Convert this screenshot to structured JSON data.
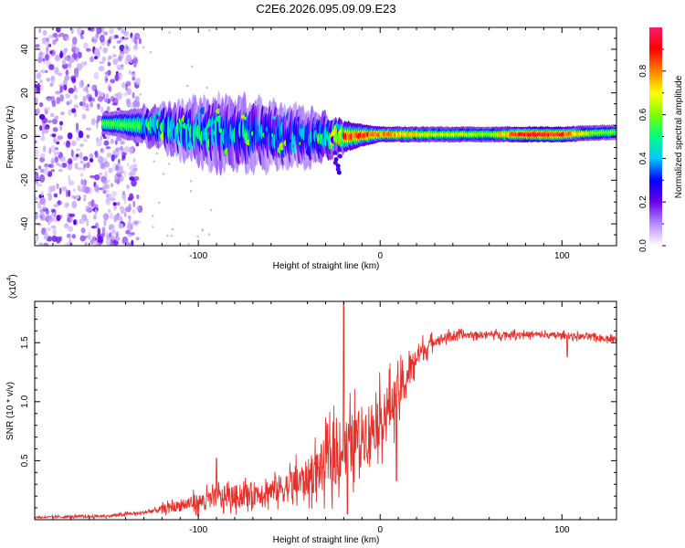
{
  "figure": {
    "title": "C2E6.2026.095.09.09.E23"
  },
  "colors": {
    "snr_line": "#e8302a",
    "spectral_stops": [
      "#ffffff",
      "#b48cff",
      "#6a00e8",
      "#0000ff",
      "#00c8ff",
      "#00ff80",
      "#80ff00",
      "#ffff00",
      "#ff8000",
      "#ff0000",
      "#ff1a70"
    ]
  },
  "chart_data": [
    {
      "type": "heatmap",
      "title": "C2E6.2026.095.09.09.E23",
      "xlabel": "Height of straight line (km)",
      "ylabel": "Frequency (Hz)",
      "xlim": [
        -190,
        130
      ],
      "ylim": [
        -50,
        50
      ],
      "x_ticks": [
        -100,
        0,
        100
      ],
      "x_tick_labels": [
        "-100",
        "0",
        "100"
      ],
      "y_ticks": [
        -40,
        -20,
        0,
        20,
        40
      ],
      "y_tick_labels": [
        "-40",
        "-20",
        "0",
        "20",
        "40"
      ],
      "colorbar": {
        "label": "Normalized spectral amplitude",
        "range": [
          0,
          1
        ],
        "ticks": [
          0.0,
          0.2,
          0.4,
          0.6,
          0.8
        ],
        "tick_labels": [
          "0.0",
          "0.2",
          "0.4",
          "0.6",
          "0.8"
        ]
      },
      "noise_region_x": [
        -190,
        -132
      ],
      "band_center_hz": [
        {
          "x": -150,
          "y": 6
        },
        {
          "x": -130,
          "y": 5
        },
        {
          "x": -110,
          "y": 3
        },
        {
          "x": -90,
          "y": 2
        },
        {
          "x": -70,
          "y": 1
        },
        {
          "x": -50,
          "y": 0
        },
        {
          "x": -30,
          "y": 0
        },
        {
          "x": -20,
          "y": 0
        },
        {
          "x": 0,
          "y": 1
        },
        {
          "x": 50,
          "y": 1
        },
        {
          "x": 100,
          "y": 1
        },
        {
          "x": 130,
          "y": 2
        }
      ],
      "band_halfwidth_hz": [
        {
          "x": -150,
          "y": 3
        },
        {
          "x": -120,
          "y": 6
        },
        {
          "x": -90,
          "y": 10
        },
        {
          "x": -60,
          "y": 9
        },
        {
          "x": -40,
          "y": 8
        },
        {
          "x": -25,
          "y": 5
        },
        {
          "x": -10,
          "y": 3
        },
        {
          "x": 0,
          "y": 2
        },
        {
          "x": 130,
          "y": 2
        }
      ],
      "band_peak_amplitude": [
        {
          "x": -150,
          "y": 0.55
        },
        {
          "x": -120,
          "y": 0.5
        },
        {
          "x": -100,
          "y": 0.45
        },
        {
          "x": -70,
          "y": 0.4
        },
        {
          "x": -40,
          "y": 0.35
        },
        {
          "x": -20,
          "y": 0.85
        },
        {
          "x": 0,
          "y": 0.8
        },
        {
          "x": 30,
          "y": 0.65
        },
        {
          "x": 60,
          "y": 0.6
        },
        {
          "x": 85,
          "y": 0.95
        },
        {
          "x": 100,
          "y": 0.9
        },
        {
          "x": 115,
          "y": 0.6
        },
        {
          "x": 130,
          "y": 0.55
        }
      ]
    },
    {
      "type": "line",
      "title": "",
      "xlabel": "Height of straight line (km)",
      "ylabel": "SNR (10 * v/v)",
      "y_scale_label": "(x10",
      "y_scale_exponent": "4",
      "xlim": [
        -190,
        130
      ],
      "ylim": [
        0,
        1.85
      ],
      "x_ticks": [
        -100,
        0,
        100
      ],
      "x_tick_labels": [
        "-100",
        "0",
        "100"
      ],
      "y_ticks": [
        0.5,
        1.0,
        1.5
      ],
      "y_tick_labels": [
        "0.5",
        "1.0",
        "1.5"
      ],
      "series": [
        {
          "name": "SNR",
          "envelope_mean": [
            {
              "x": -190,
              "y": 0.02
            },
            {
              "x": -150,
              "y": 0.03
            },
            {
              "x": -130,
              "y": 0.06
            },
            {
              "x": -110,
              "y": 0.12
            },
            {
              "x": -90,
              "y": 0.18
            },
            {
              "x": -70,
              "y": 0.22
            },
            {
              "x": -50,
              "y": 0.28
            },
            {
              "x": -40,
              "y": 0.35
            },
            {
              "x": -30,
              "y": 0.48
            },
            {
              "x": -20,
              "y": 0.6
            },
            {
              "x": -10,
              "y": 0.72
            },
            {
              "x": 0,
              "y": 0.85
            },
            {
              "x": 10,
              "y": 1.05
            },
            {
              "x": 20,
              "y": 1.38
            },
            {
              "x": 30,
              "y": 1.52
            },
            {
              "x": 40,
              "y": 1.56
            },
            {
              "x": 60,
              "y": 1.57
            },
            {
              "x": 80,
              "y": 1.57
            },
            {
              "x": 100,
              "y": 1.56
            },
            {
              "x": 115,
              "y": 1.55
            },
            {
              "x": 130,
              "y": 1.53
            }
          ],
          "envelope_spread": [
            {
              "x": -190,
              "y": 0.01
            },
            {
              "x": -130,
              "y": 0.02
            },
            {
              "x": -110,
              "y": 0.07
            },
            {
              "x": -90,
              "y": 0.12
            },
            {
              "x": -60,
              "y": 0.15
            },
            {
              "x": -40,
              "y": 0.22
            },
            {
              "x": -25,
              "y": 0.35
            },
            {
              "x": -10,
              "y": 0.35
            },
            {
              "x": 5,
              "y": 0.3
            },
            {
              "x": 15,
              "y": 0.2
            },
            {
              "x": 30,
              "y": 0.06
            },
            {
              "x": 50,
              "y": 0.04
            },
            {
              "x": 130,
              "y": 0.035
            }
          ],
          "spikes": [
            {
              "x": -90,
              "y": 0.52
            },
            {
              "x": -20,
              "y": 1.84
            },
            {
              "x": -18,
              "y": 0.05
            },
            {
              "x": 9,
              "y": 0.33
            },
            {
              "x": 103,
              "y": 1.38
            }
          ]
        }
      ]
    }
  ]
}
